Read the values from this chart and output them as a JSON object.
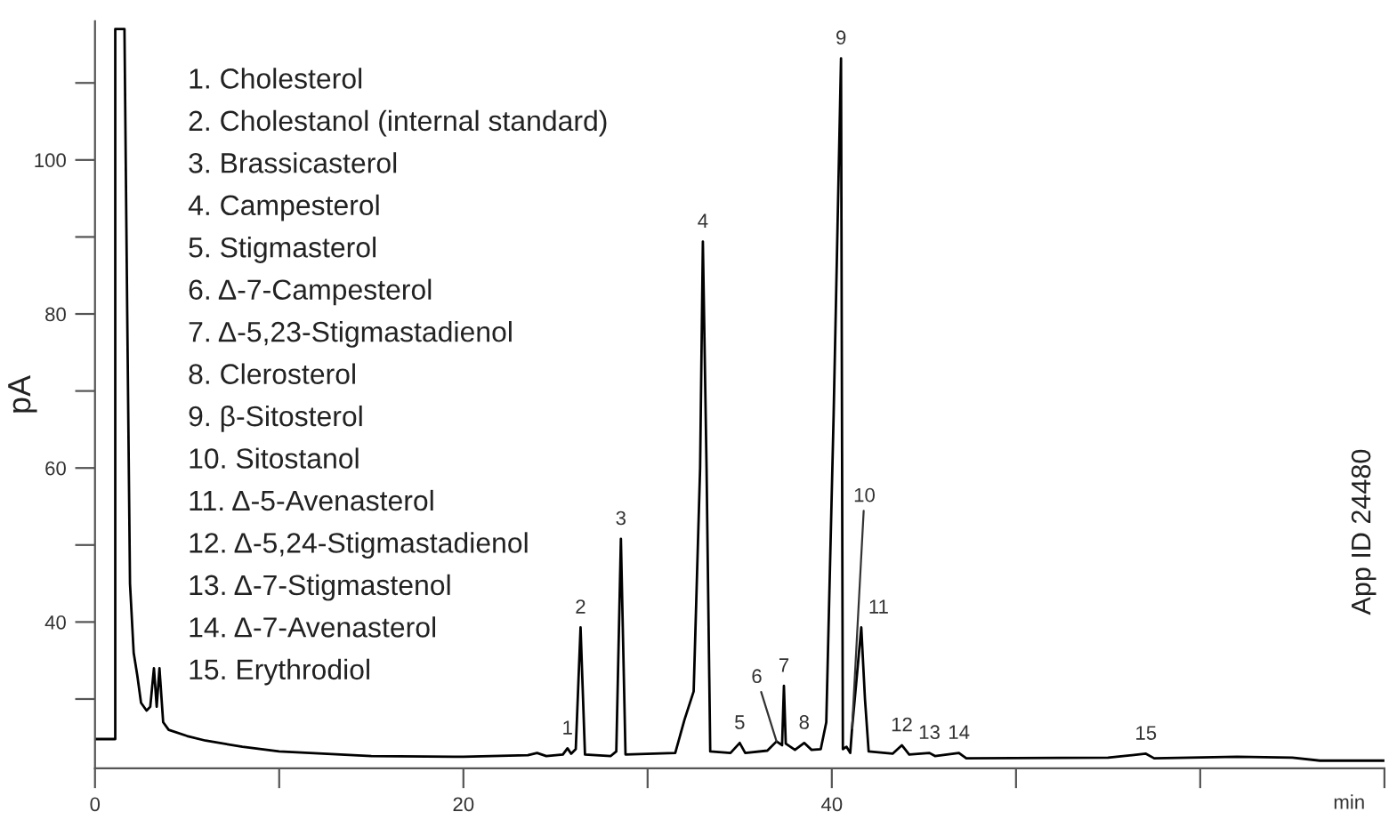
{
  "chart_data": {
    "type": "line",
    "xlabel": "min",
    "ylabel": "pA",
    "xlim": [
      0,
      70
    ],
    "ylim": [
      21,
      118
    ],
    "xticks": [
      0,
      {
        "value": 10,
        "label": null
      },
      20,
      {
        "value": 30,
        "label": null
      },
      40,
      {
        "value": 50,
        "label": null
      },
      {
        "value": 60,
        "label": null
      },
      {
        "value": 70,
        "label": null
      }
    ],
    "yticks": [
      {
        "value": 30,
        "label": null
      },
      40,
      {
        "value": 50,
        "label": null
      },
      60,
      {
        "value": 70,
        "label": null
      },
      80,
      {
        "value": 90,
        "label": null
      },
      100,
      {
        "value": 110,
        "label": null
      }
    ],
    "grid": false,
    "legend": false,
    "marker": "none",
    "line_style": "solid",
    "series": [
      {
        "color": "#000000",
        "x": [
          0,
          1.1,
          1.1,
          1.6,
          1.75,
          1.9,
          2.1,
          2.3,
          2.5,
          2.8,
          3.0,
          3.2,
          3.35,
          3.5,
          3.7,
          4.0,
          5,
          6,
          8,
          10,
          15,
          20,
          23.5,
          24,
          24.5,
          25.4,
          25.65,
          25.85,
          26.1,
          26.36,
          26.6,
          28.0,
          28.3,
          28.55,
          28.8,
          31.5,
          32.0,
          32.5,
          32.85,
          33.0,
          33.2,
          33.4,
          34.5,
          35.0,
          35.3,
          36.5,
          37.0,
          37.3,
          37.4,
          37.5,
          38.0,
          38.5,
          38.9,
          39.4,
          39.7,
          40.1,
          40.5,
          40.6,
          40.8,
          41.0,
          41.1,
          41.6,
          41.8,
          42.0,
          43.3,
          43.8,
          44.2,
          45.3,
          45.6,
          46.9,
          47.3,
          55,
          57.05,
          57.5,
          62,
          65,
          66.5,
          70
        ],
        "values": [
          24.8,
          24.8,
          117,
          117,
          80,
          45,
          36,
          33,
          29.5,
          28.5,
          29,
          34,
          29,
          34,
          27,
          26,
          25.2,
          24.6,
          23.8,
          23.2,
          22.6,
          22.5,
          22.7,
          23.0,
          22.6,
          22.8,
          23.6,
          22.9,
          23.5,
          39.3,
          22.8,
          22.6,
          23.2,
          50.8,
          22.8,
          23.0,
          27.3,
          31,
          60,
          89.4,
          60,
          23.2,
          23.0,
          24.3,
          23.0,
          23.3,
          24.5,
          24.0,
          31.7,
          24.2,
          23.4,
          24.3,
          23.4,
          23.5,
          27,
          67,
          113.2,
          23.5,
          23.8,
          23.0,
          26.2,
          39.3,
          30,
          23.2,
          22.9,
          24.0,
          22.8,
          23.0,
          22.6,
          23.0,
          22.3,
          22.4,
          22.9,
          22.3,
          22.5,
          22.4,
          22.0,
          22.0
        ]
      }
    ],
    "annotations": [
      "1. Cholesterol",
      "2. Cholestanol (internal standard)",
      "3. Brassicasterol",
      "4. Campesterol",
      "5. Stigmasterol",
      "6. Δ-7-Campesterol",
      "7. Δ-5,23-Stigmastadienol",
      "8. Clerosterol",
      "9. β-Sitosterol",
      "10. Sitostanol",
      "11. Δ-5-Avenasterol",
      "12. Δ-5,24-Stigmastadienol",
      "13. Δ-7-Stigmastenol",
      "14. Δ-7-Avenasterol",
      "15. Erythrodiol",
      {
        "text": "1",
        "x": 25.65,
        "y": 23.6
      },
      {
        "text": "2",
        "x": 26.36,
        "y": 39.3
      },
      {
        "text": "3",
        "x": 28.55,
        "y": 50.8
      },
      {
        "text": "4",
        "x": 33.0,
        "y": 89.4
      },
      {
        "text": "5",
        "x": 35.0,
        "y": 24.3
      },
      {
        "text": "6",
        "x": 37.0,
        "y": 24.5
      },
      {
        "text": "7",
        "x": 37.4,
        "y": 31.7
      },
      {
        "text": "8",
        "x": 38.5,
        "y": 24.3
      },
      {
        "text": "9",
        "x": 40.5,
        "y": 113.2
      },
      {
        "text": "10",
        "x": 41.1,
        "y": 26.2
      },
      {
        "text": "11",
        "x": 41.6,
        "y": 39.3
      },
      {
        "text": "12",
        "x": 43.8,
        "y": 24.0
      },
      {
        "text": "13",
        "x": 45.3,
        "y": 23.0
      },
      {
        "text": "14",
        "x": 46.9,
        "y": 23.0
      },
      {
        "text": "15",
        "x": 57.05,
        "y": 22.9
      },
      "App ID 24480"
    ]
  }
}
